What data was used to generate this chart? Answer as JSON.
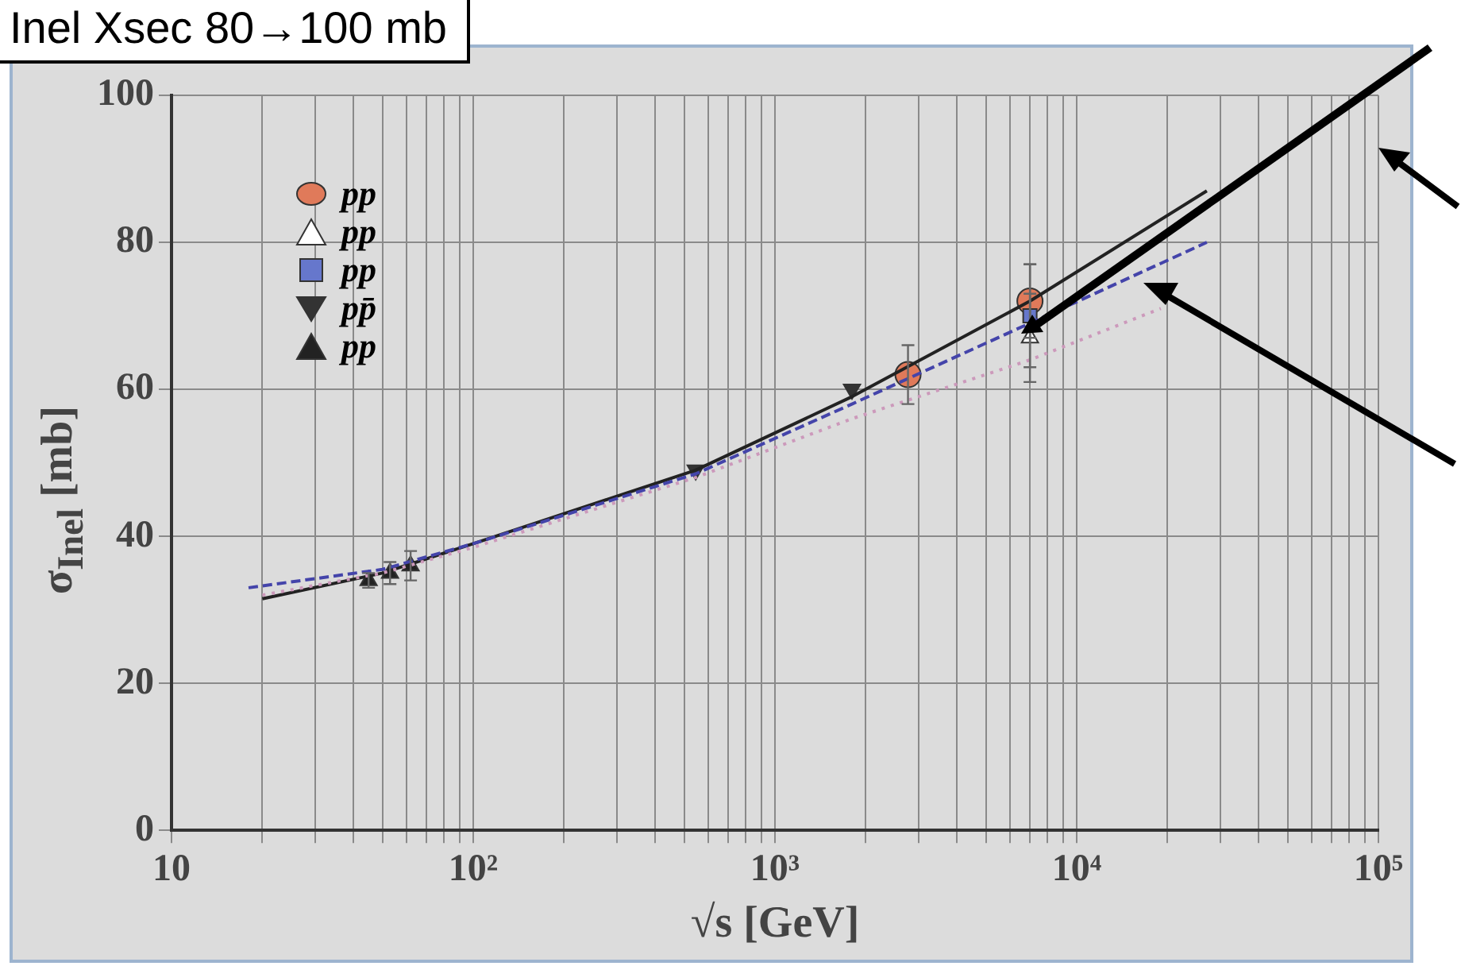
{
  "chart_data": {
    "type": "scatter",
    "title": "Inel Xsec 80→100 mb",
    "xlabel": "√s [GeV]",
    "ylabel": "σ$_{Inel}$ [mb]",
    "log": "x",
    "grid": true,
    "legend": "top left",
    "xlim": [
      10,
      100000
    ],
    "ylim": [
      0,
      100
    ],
    "xticks": [
      {
        "value": 10,
        "label": "10"
      },
      {
        "value": 20,
        "label": null
      },
      {
        "value": 30,
        "label": null
      },
      {
        "value": 40,
        "label": null
      },
      {
        "value": 50,
        "label": null
      },
      {
        "value": 60,
        "label": null
      },
      {
        "value": 70,
        "label": null
      },
      {
        "value": 80,
        "label": null
      },
      {
        "value": 90,
        "label": null
      },
      {
        "value": 100,
        "label": "10²"
      },
      {
        "value": 200,
        "label": null
      },
      {
        "value": 300,
        "label": null
      },
      {
        "value": 400,
        "label": null
      },
      {
        "value": 500,
        "label": null
      },
      {
        "value": 600,
        "label": null
      },
      {
        "value": 700,
        "label": null
      },
      {
        "value": 800,
        "label": null
      },
      {
        "value": 900,
        "label": null
      },
      {
        "value": 1000,
        "label": "10³"
      },
      {
        "value": 2000,
        "label": null
      },
      {
        "value": 3000,
        "label": null
      },
      {
        "value": 4000,
        "label": null
      },
      {
        "value": 5000,
        "label": null
      },
      {
        "value": 6000,
        "label": null
      },
      {
        "value": 7000,
        "label": null
      },
      {
        "value": 8000,
        "label": null
      },
      {
        "value": 9000,
        "label": null
      },
      {
        "value": 10000,
        "label": "10⁴"
      },
      {
        "value": 20000,
        "label": null
      },
      {
        "value": 30000,
        "label": null
      },
      {
        "value": 40000,
        "label": null
      },
      {
        "value": 50000,
        "label": null
      },
      {
        "value": 60000,
        "label": null
      },
      {
        "value": 70000,
        "label": null
      },
      {
        "value": 80000,
        "label": null
      },
      {
        "value": 90000,
        "label": null
      },
      {
        "value": 100000,
        "label": "10⁵"
      }
    ],
    "yticks": [
      0,
      20,
      40,
      60,
      80,
      100
    ],
    "series": [
      {
        "name": "pp",
        "type": "scatter",
        "marker": "circle",
        "color": "#e07a5a",
        "x": [
          2760,
          7000
        ],
        "values": [
          62,
          72
        ],
        "errors": [
          4,
          5
        ]
      },
      {
        "name": "pp",
        "type": "scatter",
        "marker": "triangle",
        "color": "#ffffff",
        "x": [
          7000
        ],
        "values": [
          67
        ],
        "errors": [
          6
        ]
      },
      {
        "name": "pp",
        "type": "scatter",
        "marker": "square",
        "color": "#6677cc",
        "x": [
          7000
        ],
        "values": [
          70
        ],
        "errors": [
          7
        ]
      },
      {
        "name": "pp̄",
        "type": "scatter",
        "marker": "triangle-down",
        "color": "#333333",
        "x": [
          546,
          1800
        ],
        "values": [
          49,
          60
        ]
      },
      {
        "name": "pp",
        "type": "scatter",
        "marker": "triangle",
        "color": "#222222",
        "x": [
          45,
          53,
          62
        ],
        "values": [
          34,
          35,
          36
        ],
        "errors": [
          1,
          1.5,
          2
        ]
      },
      {
        "type": "line",
        "line_style": "solid",
        "marker": "none",
        "color": "#222222",
        "x": [
          20,
          50,
          100,
          546,
          1800,
          7000,
          27000
        ],
        "values": [
          31.5,
          35,
          39,
          49,
          59,
          72,
          87
        ]
      },
      {
        "type": "line",
        "line_style": "dashed",
        "marker": "none",
        "color": "#4444aa",
        "x": [
          18,
          50,
          100,
          546,
          1800,
          7000,
          27000
        ],
        "values": [
          33,
          35.5,
          39,
          48.5,
          58,
          69,
          80
        ]
      },
      {
        "type": "line",
        "line_style": "dotted",
        "marker": "none",
        "color": "#cc99bb",
        "x": [
          20,
          50,
          100,
          546,
          1800,
          7000,
          19000
        ],
        "values": [
          32,
          35,
          38.5,
          48,
          56,
          64,
          71
        ]
      }
    ]
  }
}
